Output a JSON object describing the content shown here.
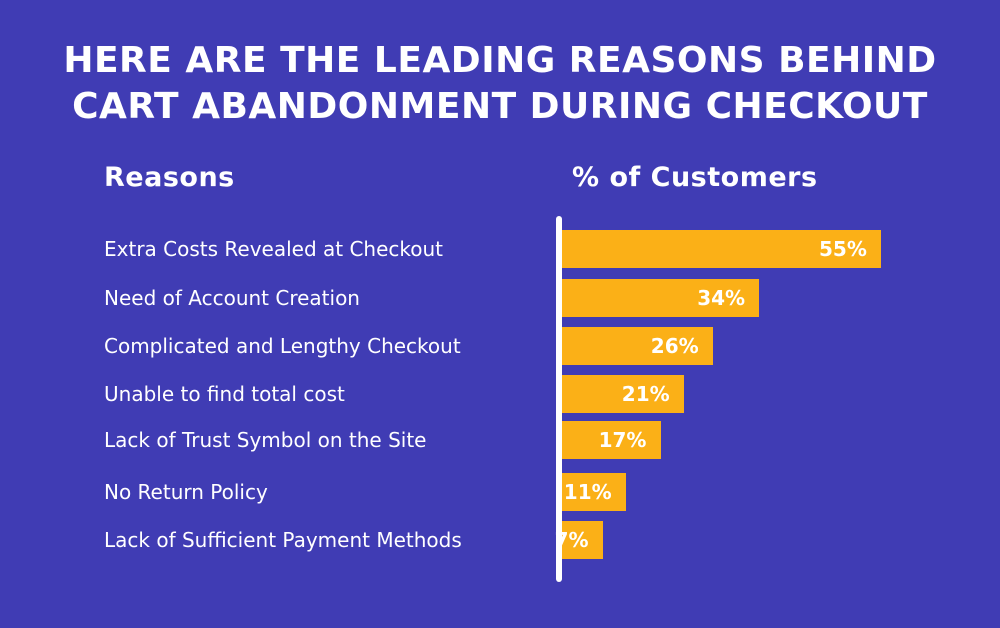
{
  "title": {
    "line1": "HERE ARE THE LEADING REASONS BEHIND",
    "line2": "CART ABANDONMENT DURING CHECKOUT"
  },
  "colors": {
    "background": "#403cb4",
    "bar": "#fbb017",
    "text": "#ffffff"
  },
  "chart_data": {
    "type": "bar",
    "orientation": "horizontal",
    "category_header": "Reasons",
    "value_header": "% of Customers",
    "categories": [
      "Extra Costs Revealed at Checkout",
      "Need of Account Creation",
      "Complicated and Lengthy Checkout",
      "Unable to find total cost",
      "Lack of Trust Symbol on the Site",
      "No Return Policy",
      "Lack of Sufficient Payment Methods"
    ],
    "values": [
      55,
      34,
      26,
      21,
      17,
      11,
      7
    ],
    "value_labels": [
      "55%",
      "34%",
      "26%",
      "21%",
      "17%",
      "11%",
      "7%"
    ],
    "unit": "%",
    "grid": false
  }
}
